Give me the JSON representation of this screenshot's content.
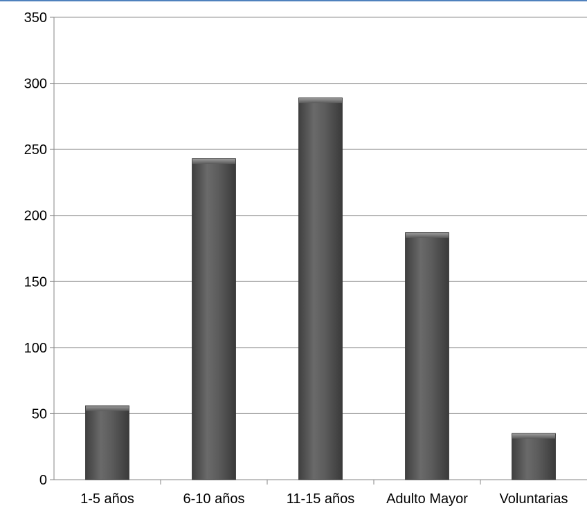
{
  "chart_data": {
    "type": "bar",
    "title": "",
    "xlabel": "",
    "ylabel": "",
    "categories": [
      "1-5 años",
      "6-10 años",
      "11-15 años",
      "Adulto Mayor",
      "Voluntarias"
    ],
    "values": [
      56,
      243,
      289,
      187,
      35
    ],
    "ylim": [
      0,
      350
    ],
    "yticks": [
      0,
      50,
      100,
      150,
      200,
      250,
      300,
      350
    ],
    "grid": true,
    "legend": "none",
    "colors": {
      "bar": "#595959",
      "bar_light": "#7a7a7a",
      "bar_dark": "#3a3a3a",
      "grid": "#8c8c8c",
      "axis": "#868686",
      "frame_top": "#4f81bd"
    }
  }
}
